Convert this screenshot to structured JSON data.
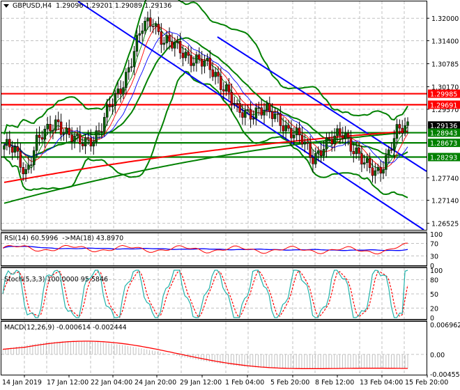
{
  "window": {
    "symbol": "GBPUSD",
    "timeframe": "H4",
    "header": "GBPUSD,H4",
    "ohlc": {
      "open": "1.29096",
      "high": "1.29201",
      "low": "1.29089",
      "close": "1.29136"
    },
    "menu_icon": "triangle-down-icon"
  },
  "colors": {
    "background": "#ffffff",
    "grid": "#c0c0c0",
    "bull_candle": "#006400",
    "bear_candle": "#cc0000",
    "bollinger": "#008000",
    "ma_slow": "#ff0000",
    "ma_200": "#008000",
    "trendline": "#0000ff",
    "resistance": "#ff0000",
    "support": "#008000",
    "current_price": "#000000",
    "rsi": "#ff0000",
    "rsi_ma": "#0000ff",
    "stoch_main": "#20b2aa",
    "stoch_signal": "#ff0000",
    "macd_hist": "#c0c0c0",
    "macd_signal": "#ff0000"
  },
  "chart_data": [
    {
      "type": "candlestick",
      "title": "GBPUSD,H4 1.29096 1.29201 1.29089 1.29136",
      "ylim": [
        1.2635,
        1.3245
      ],
      "y_ticks": [
        "1.32000",
        "1.31400",
        "1.30785",
        "1.30170",
        "1.29570",
        "1.27740",
        "1.27140",
        "1.26525"
      ],
      "x_ticks": [
        "14 Jan 2019",
        "17 Jan 12:00",
        "22 Jan 04:00",
        "24 Jan 20:00",
        "29 Jan 12:00",
        "1 Feb 04:00",
        "5 Feb 20:00",
        "8 Feb 12:00",
        "13 Feb 04:00",
        "15 Feb 20:00"
      ],
      "horizontal_levels": [
        {
          "value": "1.29985",
          "color": "#ff0000",
          "role": "resistance"
        },
        {
          "value": "1.29691",
          "color": "#ff0000",
          "role": "resistance"
        },
        {
          "value": "1.29136",
          "color": "#000000",
          "role": "current-price"
        },
        {
          "value": "1.28943",
          "color": "#008000",
          "role": "support"
        },
        {
          "value": "1.28673",
          "color": "#008000",
          "role": "support"
        },
        {
          "value": "1.28293",
          "color": "#008000",
          "role": "support"
        }
      ],
      "close_path_approx": [
        1.286,
        1.284,
        1.279,
        1.287,
        1.289,
        1.293,
        1.289,
        1.286,
        1.288,
        1.29,
        1.296,
        1.302,
        1.309,
        1.317,
        1.32,
        1.314,
        1.312,
        1.311,
        1.309,
        1.307,
        1.305,
        1.301,
        1.294,
        1.295,
        1.296,
        1.294,
        1.293,
        1.29,
        1.287,
        1.283,
        1.286,
        1.287,
        1.29,
        1.285,
        1.28,
        1.279,
        1.283,
        1.289,
        1.2914
      ],
      "overlays": [
        "Bollinger Bands",
        "Moving Averages (fast/slow)",
        "MA 200",
        "Descending channel trendlines"
      ]
    },
    {
      "type": "line",
      "title": "RSI(14) 60.5996 ->MA(18) 43.8970",
      "ylim": [
        0,
        100
      ],
      "y_ticks": [
        "100",
        "70",
        "30",
        "0"
      ],
      "series": [
        {
          "name": "RSI(14)",
          "last": 60.5996
        },
        {
          "name": "MA(18)",
          "last": 43.897
        }
      ]
    },
    {
      "type": "line",
      "title": "Stoch(5,3,3) 100.0000 95.5846",
      "ylim": [
        0,
        100
      ],
      "y_ticks": [
        "100",
        "80",
        "50",
        "20",
        "0"
      ],
      "series": [
        {
          "name": "%K",
          "last": 100.0
        },
        {
          "name": "%D",
          "last": 95.5846
        }
      ]
    },
    {
      "type": "bar",
      "title": "MACD(12,26,9) -0.000614 -0.002444",
      "ylim": [
        -0.004556,
        0.006962
      ],
      "y_ticks": [
        "0.006962",
        "0.00",
        "-0.004556"
      ],
      "series": [
        {
          "name": "MACD",
          "last": -0.000614
        },
        {
          "name": "Signal",
          "last": -0.002444
        }
      ]
    }
  ],
  "panels": {
    "main": {
      "title": "GBPUSD,H4  1.29096 1.29201 1.29089 1.29136"
    },
    "rsi": {
      "title": "RSI(14) 60.5996  ->MA(18) 43.8970",
      "ticks": [
        "100",
        "70",
        "30",
        "0"
      ]
    },
    "stoch": {
      "title": "Stoch(5,3,3) 100.0000 95.5846",
      "ticks": [
        "100",
        "80",
        "50",
        "20",
        "0"
      ]
    },
    "macd": {
      "title": "MACD(12,26,9) -0.000614 -0.002444",
      "ticks": [
        "0.006962",
        "0.00",
        "-0.004556"
      ]
    }
  },
  "price_axis": {
    "ticks": [
      "1.32000",
      "1.31400",
      "1.30785",
      "1.30170",
      "1.29570",
      "1.27740",
      "1.27140",
      "1.26525"
    ],
    "tags": [
      "1.29985",
      "1.29691",
      "1.29136",
      "1.28943",
      "1.28673",
      "1.28293"
    ]
  },
  "time_axis": {
    "labels": [
      "14 Jan 2019",
      "17 Jan 12:00",
      "22 Jan 04:00",
      "24 Jan 20:00",
      "29 Jan 12:00",
      "1 Feb 04:00",
      "5 Feb 20:00",
      "8 Feb 12:00",
      "13 Feb 04:00",
      "15 Feb 20:00"
    ]
  }
}
